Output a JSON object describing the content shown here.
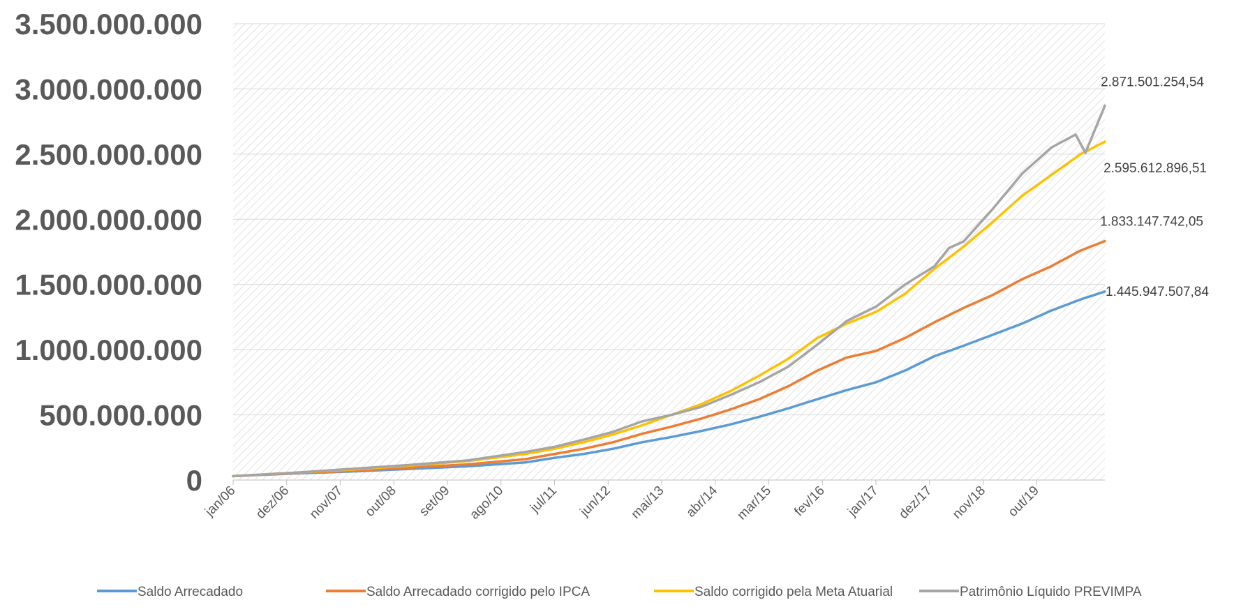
{
  "chart_data": {
    "type": "line",
    "title": "",
    "xlabel": "",
    "ylabel": "",
    "ylim": [
      0,
      3500000000
    ],
    "y_ticks": [
      {
        "value": 0,
        "label": "0"
      },
      {
        "value": 500000000,
        "label": "500.000.000"
      },
      {
        "value": 1000000000,
        "label": "1.000.000.000"
      },
      {
        "value": 1500000000,
        "label": "1.500.000.000"
      },
      {
        "value": 2000000000,
        "label": "2.000.000.000"
      },
      {
        "value": 2500000000,
        "label": "2.500.000.000"
      },
      {
        "value": 3000000000,
        "label": "3.000.000.000"
      },
      {
        "value": 3500000000,
        "label": "3.500.000.000"
      }
    ],
    "x_range": [
      "2006-01",
      "2020-12"
    ],
    "x_ticks": [
      "jan/06",
      "dez/06",
      "nov/07",
      "out/08",
      "set/09",
      "ago/10",
      "jul/11",
      "jun/12",
      "mai/13",
      "abr/14",
      "mar/15",
      "fev/16",
      "jan/17",
      "dez/17",
      "nov/18",
      "out/19"
    ],
    "grid": true,
    "plot_background": "diagonal-hatch",
    "legend_position": "bottom",
    "series": [
      {
        "name": "Saldo Arrecadado",
        "color": "#5b9bd5",
        "end_label": "1.445.947.507,84",
        "points": [
          [
            "2006-01",
            30000000
          ],
          [
            "2007-01",
            50000000
          ],
          [
            "2008-01",
            65000000
          ],
          [
            "2009-01",
            85000000
          ],
          [
            "2010-01",
            105000000
          ],
          [
            "2011-01",
            135000000
          ],
          [
            "2011-07",
            170000000
          ],
          [
            "2012-01",
            200000000
          ],
          [
            "2012-07",
            240000000
          ],
          [
            "2013-01",
            290000000
          ],
          [
            "2013-07",
            330000000
          ],
          [
            "2014-01",
            375000000
          ],
          [
            "2014-07",
            425000000
          ],
          [
            "2015-01",
            485000000
          ],
          [
            "2015-07",
            550000000
          ],
          [
            "2016-01",
            620000000
          ],
          [
            "2016-07",
            690000000
          ],
          [
            "2017-01",
            750000000
          ],
          [
            "2017-07",
            840000000
          ],
          [
            "2018-01",
            950000000
          ],
          [
            "2018-07",
            1030000000
          ],
          [
            "2019-01",
            1115000000
          ],
          [
            "2019-07",
            1200000000
          ],
          [
            "2020-01",
            1300000000
          ],
          [
            "2020-07",
            1385000000
          ],
          [
            "2020-12",
            1445947507.84
          ]
        ]
      },
      {
        "name": "Saldo Arrecadado corrigido pelo IPCA",
        "color": "#ed7d31",
        "end_label": "1.833.147.742,05",
        "points": [
          [
            "2006-01",
            30000000
          ],
          [
            "2007-01",
            52000000
          ],
          [
            "2008-01",
            70000000
          ],
          [
            "2009-01",
            95000000
          ],
          [
            "2010-01",
            120000000
          ],
          [
            "2011-01",
            160000000
          ],
          [
            "2011-07",
            200000000
          ],
          [
            "2012-01",
            240000000
          ],
          [
            "2012-07",
            290000000
          ],
          [
            "2013-01",
            355000000
          ],
          [
            "2013-07",
            410000000
          ],
          [
            "2014-01",
            470000000
          ],
          [
            "2014-07",
            540000000
          ],
          [
            "2015-01",
            620000000
          ],
          [
            "2015-07",
            720000000
          ],
          [
            "2016-01",
            840000000
          ],
          [
            "2016-07",
            940000000
          ],
          [
            "2017-01",
            990000000
          ],
          [
            "2017-07",
            1090000000
          ],
          [
            "2018-01",
            1210000000
          ],
          [
            "2018-07",
            1320000000
          ],
          [
            "2019-01",
            1420000000
          ],
          [
            "2019-07",
            1540000000
          ],
          [
            "2020-01",
            1640000000
          ],
          [
            "2020-07",
            1760000000
          ],
          [
            "2020-12",
            1833147742.05
          ]
        ]
      },
      {
        "name": "Saldo corrigido pela Meta Atuarial",
        "color": "#ffc000",
        "end_label": "2.595.612.896,51",
        "points": [
          [
            "2006-01",
            30000000
          ],
          [
            "2007-01",
            55000000
          ],
          [
            "2008-01",
            80000000
          ],
          [
            "2009-01",
            110000000
          ],
          [
            "2010-01",
            145000000
          ],
          [
            "2011-01",
            200000000
          ],
          [
            "2011-07",
            240000000
          ],
          [
            "2012-01",
            290000000
          ],
          [
            "2012-07",
            350000000
          ],
          [
            "2013-01",
            420000000
          ],
          [
            "2013-07",
            500000000
          ],
          [
            "2014-01",
            580000000
          ],
          [
            "2014-07",
            680000000
          ],
          [
            "2015-01",
            800000000
          ],
          [
            "2015-07",
            930000000
          ],
          [
            "2016-01",
            1090000000
          ],
          [
            "2016-07",
            1200000000
          ],
          [
            "2017-01",
            1290000000
          ],
          [
            "2017-07",
            1430000000
          ],
          [
            "2018-01",
            1620000000
          ],
          [
            "2018-07",
            1790000000
          ],
          [
            "2019-01",
            1980000000
          ],
          [
            "2019-07",
            2180000000
          ],
          [
            "2020-01",
            2340000000
          ],
          [
            "2020-07",
            2500000000
          ],
          [
            "2020-12",
            2595612896.51
          ]
        ]
      },
      {
        "name": "Patrimônio Líquido PREVIMPA",
        "color": "#a5a5a5",
        "end_label": "2.871.501.254,54",
        "points": [
          [
            "2006-01",
            30000000
          ],
          [
            "2007-01",
            55000000
          ],
          [
            "2008-01",
            85000000
          ],
          [
            "2009-01",
            115000000
          ],
          [
            "2010-01",
            150000000
          ],
          [
            "2011-01",
            215000000
          ],
          [
            "2011-07",
            255000000
          ],
          [
            "2012-01",
            310000000
          ],
          [
            "2012-07",
            370000000
          ],
          [
            "2013-01",
            450000000
          ],
          [
            "2013-07",
            500000000
          ],
          [
            "2014-01",
            560000000
          ],
          [
            "2014-07",
            650000000
          ],
          [
            "2015-01",
            750000000
          ],
          [
            "2015-07",
            870000000
          ],
          [
            "2016-01",
            1040000000
          ],
          [
            "2016-07",
            1220000000
          ],
          [
            "2017-01",
            1330000000
          ],
          [
            "2017-07",
            1500000000
          ],
          [
            "2018-01",
            1640000000
          ],
          [
            "2018-04",
            1780000000
          ],
          [
            "2018-07",
            1830000000
          ],
          [
            "2019-01",
            2080000000
          ],
          [
            "2019-07",
            2350000000
          ],
          [
            "2020-01",
            2550000000
          ],
          [
            "2020-06",
            2650000000
          ],
          [
            "2020-08",
            2510000000
          ],
          [
            "2020-12",
            2871501254.54
          ]
        ]
      }
    ]
  }
}
